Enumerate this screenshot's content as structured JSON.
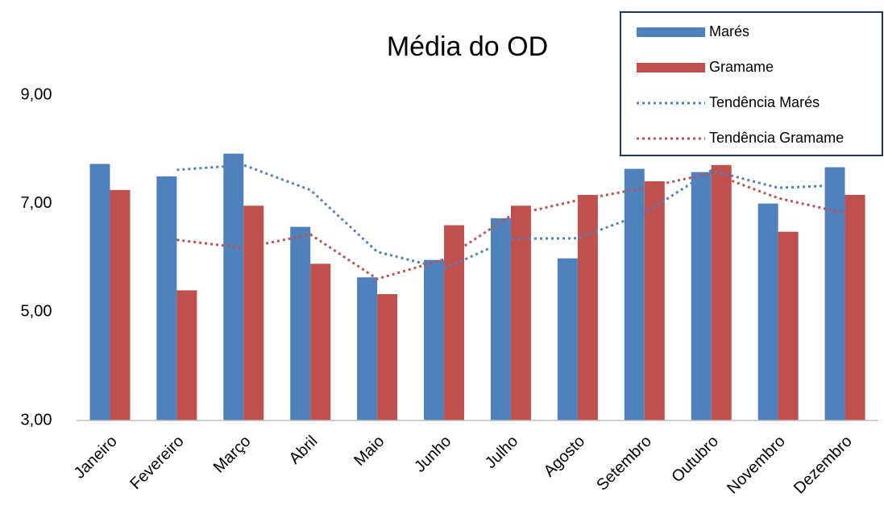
{
  "chart_data": {
    "type": "bar",
    "title": "Média do OD",
    "categories": [
      "Janeiro",
      "Fevereiro",
      "Março",
      "Abril",
      "Maio",
      "Junho",
      "Julho",
      "Agosto",
      "Setembro",
      "Outubro",
      "Novembro",
      "Dezembro"
    ],
    "series": [
      {
        "name": "Marés",
        "type": "bar",
        "color": "#4f81bd",
        "values": [
          7.73,
          7.5,
          7.92,
          6.57,
          5.64,
          5.96,
          6.73,
          5.99,
          7.64,
          7.58,
          7.0,
          7.67
        ]
      },
      {
        "name": "Gramame",
        "type": "bar",
        "color": "#c0504d",
        "values": [
          7.25,
          5.4,
          6.96,
          5.89,
          5.33,
          6.6,
          6.96,
          7.16,
          7.41,
          7.71,
          6.48,
          7.16
        ]
      },
      {
        "name": "Tendência Marés",
        "type": "line",
        "line_style": "dotted",
        "color": "#4f81bd",
        "values": [
          null,
          7.62,
          7.71,
          7.25,
          6.11,
          5.8,
          6.35,
          6.36,
          6.82,
          7.61,
          7.29,
          7.34
        ]
      },
      {
        "name": "Tendência Gramame",
        "type": "line",
        "line_style": "dotted",
        "color": "#c0504d",
        "values": [
          null,
          6.33,
          6.18,
          6.43,
          5.61,
          5.97,
          6.78,
          7.06,
          7.29,
          7.56,
          7.1,
          6.82
        ]
      }
    ],
    "ylim": [
      3,
      9
    ],
    "yticks": [
      {
        "value": 3,
        "label": "3,00"
      },
      {
        "value": 5,
        "label": "5,00"
      },
      {
        "value": 7,
        "label": "7,00"
      },
      {
        "value": 9,
        "label": "9,00"
      }
    ],
    "grid": false,
    "legend": "top-right"
  }
}
